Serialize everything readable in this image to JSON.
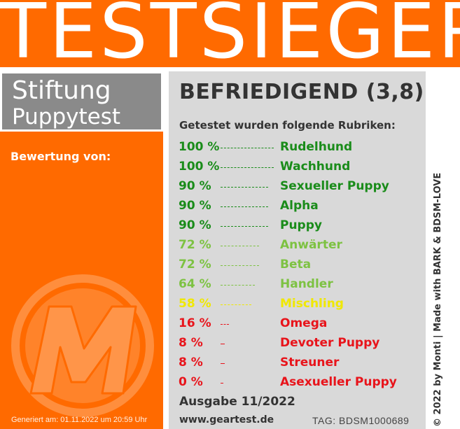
{
  "banner": {
    "title": "TESTSIEGER"
  },
  "brand": {
    "line1": "Stiftung",
    "line2": "Puppytest"
  },
  "rated_by_label": "Bewertung von:",
  "generated": "Generiert am: 01.11.2022 um 20:59 Uhr",
  "verdict": "BEFRIEDIGEND (3,8)",
  "tested_label": "Getestet wurden folgende Rubriken:",
  "categories": [
    {
      "percent": "100 %",
      "name": "Rudelhund",
      "fraction": 1.0,
      "color": "#1a8c1a"
    },
    {
      "percent": "100 %",
      "name": "Wachhund",
      "fraction": 1.0,
      "color": "#1a8c1a"
    },
    {
      "percent": "90 %",
      "name": "Sexueller Puppy",
      "fraction": 0.9,
      "color": "#1a8c1a"
    },
    {
      "percent": "90 %",
      "name": "Alpha",
      "fraction": 0.9,
      "color": "#1a8c1a"
    },
    {
      "percent": "90 %",
      "name": "Puppy",
      "fraction": 0.9,
      "color": "#1a8c1a"
    },
    {
      "percent": "72 %",
      "name": "Anwärter",
      "fraction": 0.72,
      "color": "#7dc242"
    },
    {
      "percent": "72 %",
      "name": "Beta",
      "fraction": 0.72,
      "color": "#7dc242"
    },
    {
      "percent": "64 %",
      "name": "Handler",
      "fraction": 0.64,
      "color": "#7dc242"
    },
    {
      "percent": "58 %",
      "name": "Mischling",
      "fraction": 0.58,
      "color": "#f0e800"
    },
    {
      "percent": "16 %",
      "name": "Omega",
      "fraction": 0.16,
      "color": "#e8141b"
    },
    {
      "percent": "8 %",
      "name": "Devoter Puppy",
      "fraction": 0.08,
      "color": "#e8141b"
    },
    {
      "percent": "8 %",
      "name": "Streuner",
      "fraction": 0.08,
      "color": "#e8141b"
    },
    {
      "percent": "0 %",
      "name": "Asexueller Puppy",
      "fraction": 0.0,
      "color": "#e8141b"
    }
  ],
  "edition": "Ausgabe 11/2022",
  "website": "www.geartest.de",
  "tag": "TAG: BDSM1000689",
  "copyright": "© 2022 by Monti | Made with BARK & BDSM-LOVE",
  "colors": {
    "accent": "#ff6a00",
    "panel": "#d9d9d9",
    "brand_box": "#8a8a8a"
  },
  "logo_icon": "m-logo-icon"
}
